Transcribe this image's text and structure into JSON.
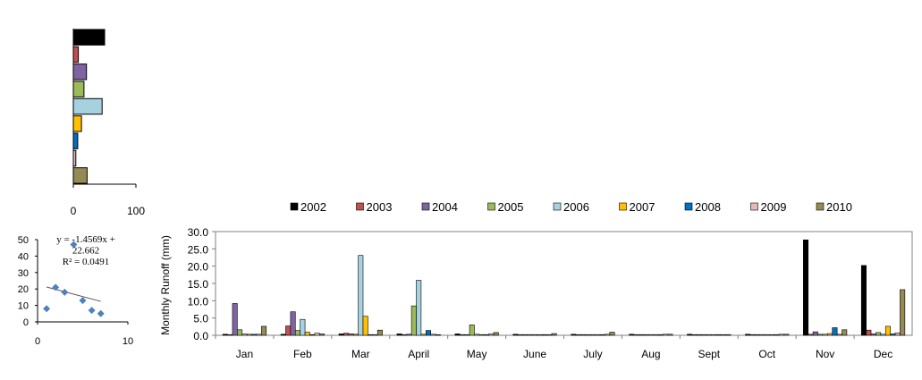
{
  "chart_data": [
    {
      "type": "bar",
      "orientation": "horizontal",
      "categories": [
        "2002",
        "2003",
        "2004",
        "2005",
        "2006",
        "2007",
        "2008",
        "2009",
        "2010"
      ],
      "values": [
        50,
        8,
        21,
        17,
        46,
        13,
        7,
        4,
        22
      ],
      "xlim": [
        0,
        100
      ],
      "xticks": [
        "0",
        "100"
      ],
      "grid": false
    },
    {
      "type": "scatter",
      "x": [
        1,
        2,
        3,
        4,
        5,
        6,
        7
      ],
      "y": [
        8,
        21,
        18,
        47,
        13,
        7,
        5
      ],
      "xlim": [
        0,
        10
      ],
      "ylim": [
        0,
        50
      ],
      "xticks": [
        "0",
        "10"
      ],
      "yticks": [
        "0",
        "10",
        "20",
        "30",
        "40",
        "50"
      ],
      "trendline": {
        "slope": -1.4569,
        "intercept": 22.662
      },
      "equation_lines": [
        "y = -1.4569x +",
        "22.662",
        "R² = 0.0491"
      ]
    },
    {
      "type": "bar",
      "categories": [
        "Jan",
        "Feb",
        "Mar",
        "April",
        "May",
        "June",
        "July",
        "Aug",
        "Sept",
        "Oct",
        "Nov",
        "Dec"
      ],
      "ylabel": "Monthly  Runoff (mm)",
      "ylim": [
        0,
        30
      ],
      "yticks": [
        "0.0",
        "5.0",
        "10.0",
        "15.0",
        "20.0",
        "25.0",
        "30.0"
      ],
      "legend_position": "top",
      "series": [
        {
          "name": "2002",
          "color": "#000000",
          "values": [
            0.3,
            0.3,
            0.4,
            0.4,
            0.4,
            0.3,
            0.3,
            0.3,
            0.3,
            0.3,
            27.6,
            20.2
          ]
        },
        {
          "name": "2003",
          "color": "#C0504D",
          "values": [
            0.2,
            2.7,
            0.6,
            0.2,
            0.2,
            0.2,
            0.2,
            0.2,
            0.2,
            0.2,
            0.3,
            1.5
          ]
        },
        {
          "name": "2004",
          "color": "#8064A2",
          "values": [
            9.2,
            6.8,
            0.4,
            0.3,
            0.2,
            0.2,
            0.2,
            0.2,
            0.2,
            0.2,
            1.0,
            0.4
          ]
        },
        {
          "name": "2005",
          "color": "#9BBB59",
          "values": [
            1.6,
            1.4,
            0.3,
            8.5,
            3.0,
            0.2,
            0.2,
            0.2,
            0.2,
            0.2,
            0.3,
            0.8
          ]
        },
        {
          "name": "2006",
          "color": "#A6D2E0",
          "values": [
            0.4,
            4.6,
            23.1,
            15.9,
            0.3,
            0.2,
            0.2,
            0.2,
            0.2,
            0.2,
            0.3,
            0.3
          ]
        },
        {
          "name": "2007",
          "color": "#FFC000",
          "values": [
            0.3,
            0.9,
            5.5,
            0.3,
            0.2,
            0.2,
            0.2,
            0.2,
            0.2,
            0.2,
            0.5,
            2.6
          ]
        },
        {
          "name": "2008",
          "color": "#0070C0",
          "values": [
            0.3,
            0.2,
            0.2,
            1.4,
            0.2,
            0.2,
            0.2,
            0.2,
            0.2,
            0.2,
            2.2,
            0.4
          ]
        },
        {
          "name": "2009",
          "color": "#E6B9B8",
          "values": [
            0.3,
            0.6,
            0.2,
            0.3,
            0.4,
            0.2,
            0.3,
            0.3,
            0.2,
            0.3,
            0.3,
            0.7
          ]
        },
        {
          "name": "2010",
          "color": "#948A54",
          "values": [
            2.6,
            0.4,
            1.5,
            0.2,
            0.8,
            0.5,
            0.9,
            0.3,
            0.2,
            0.3,
            1.6,
            13.2
          ]
        }
      ]
    }
  ]
}
